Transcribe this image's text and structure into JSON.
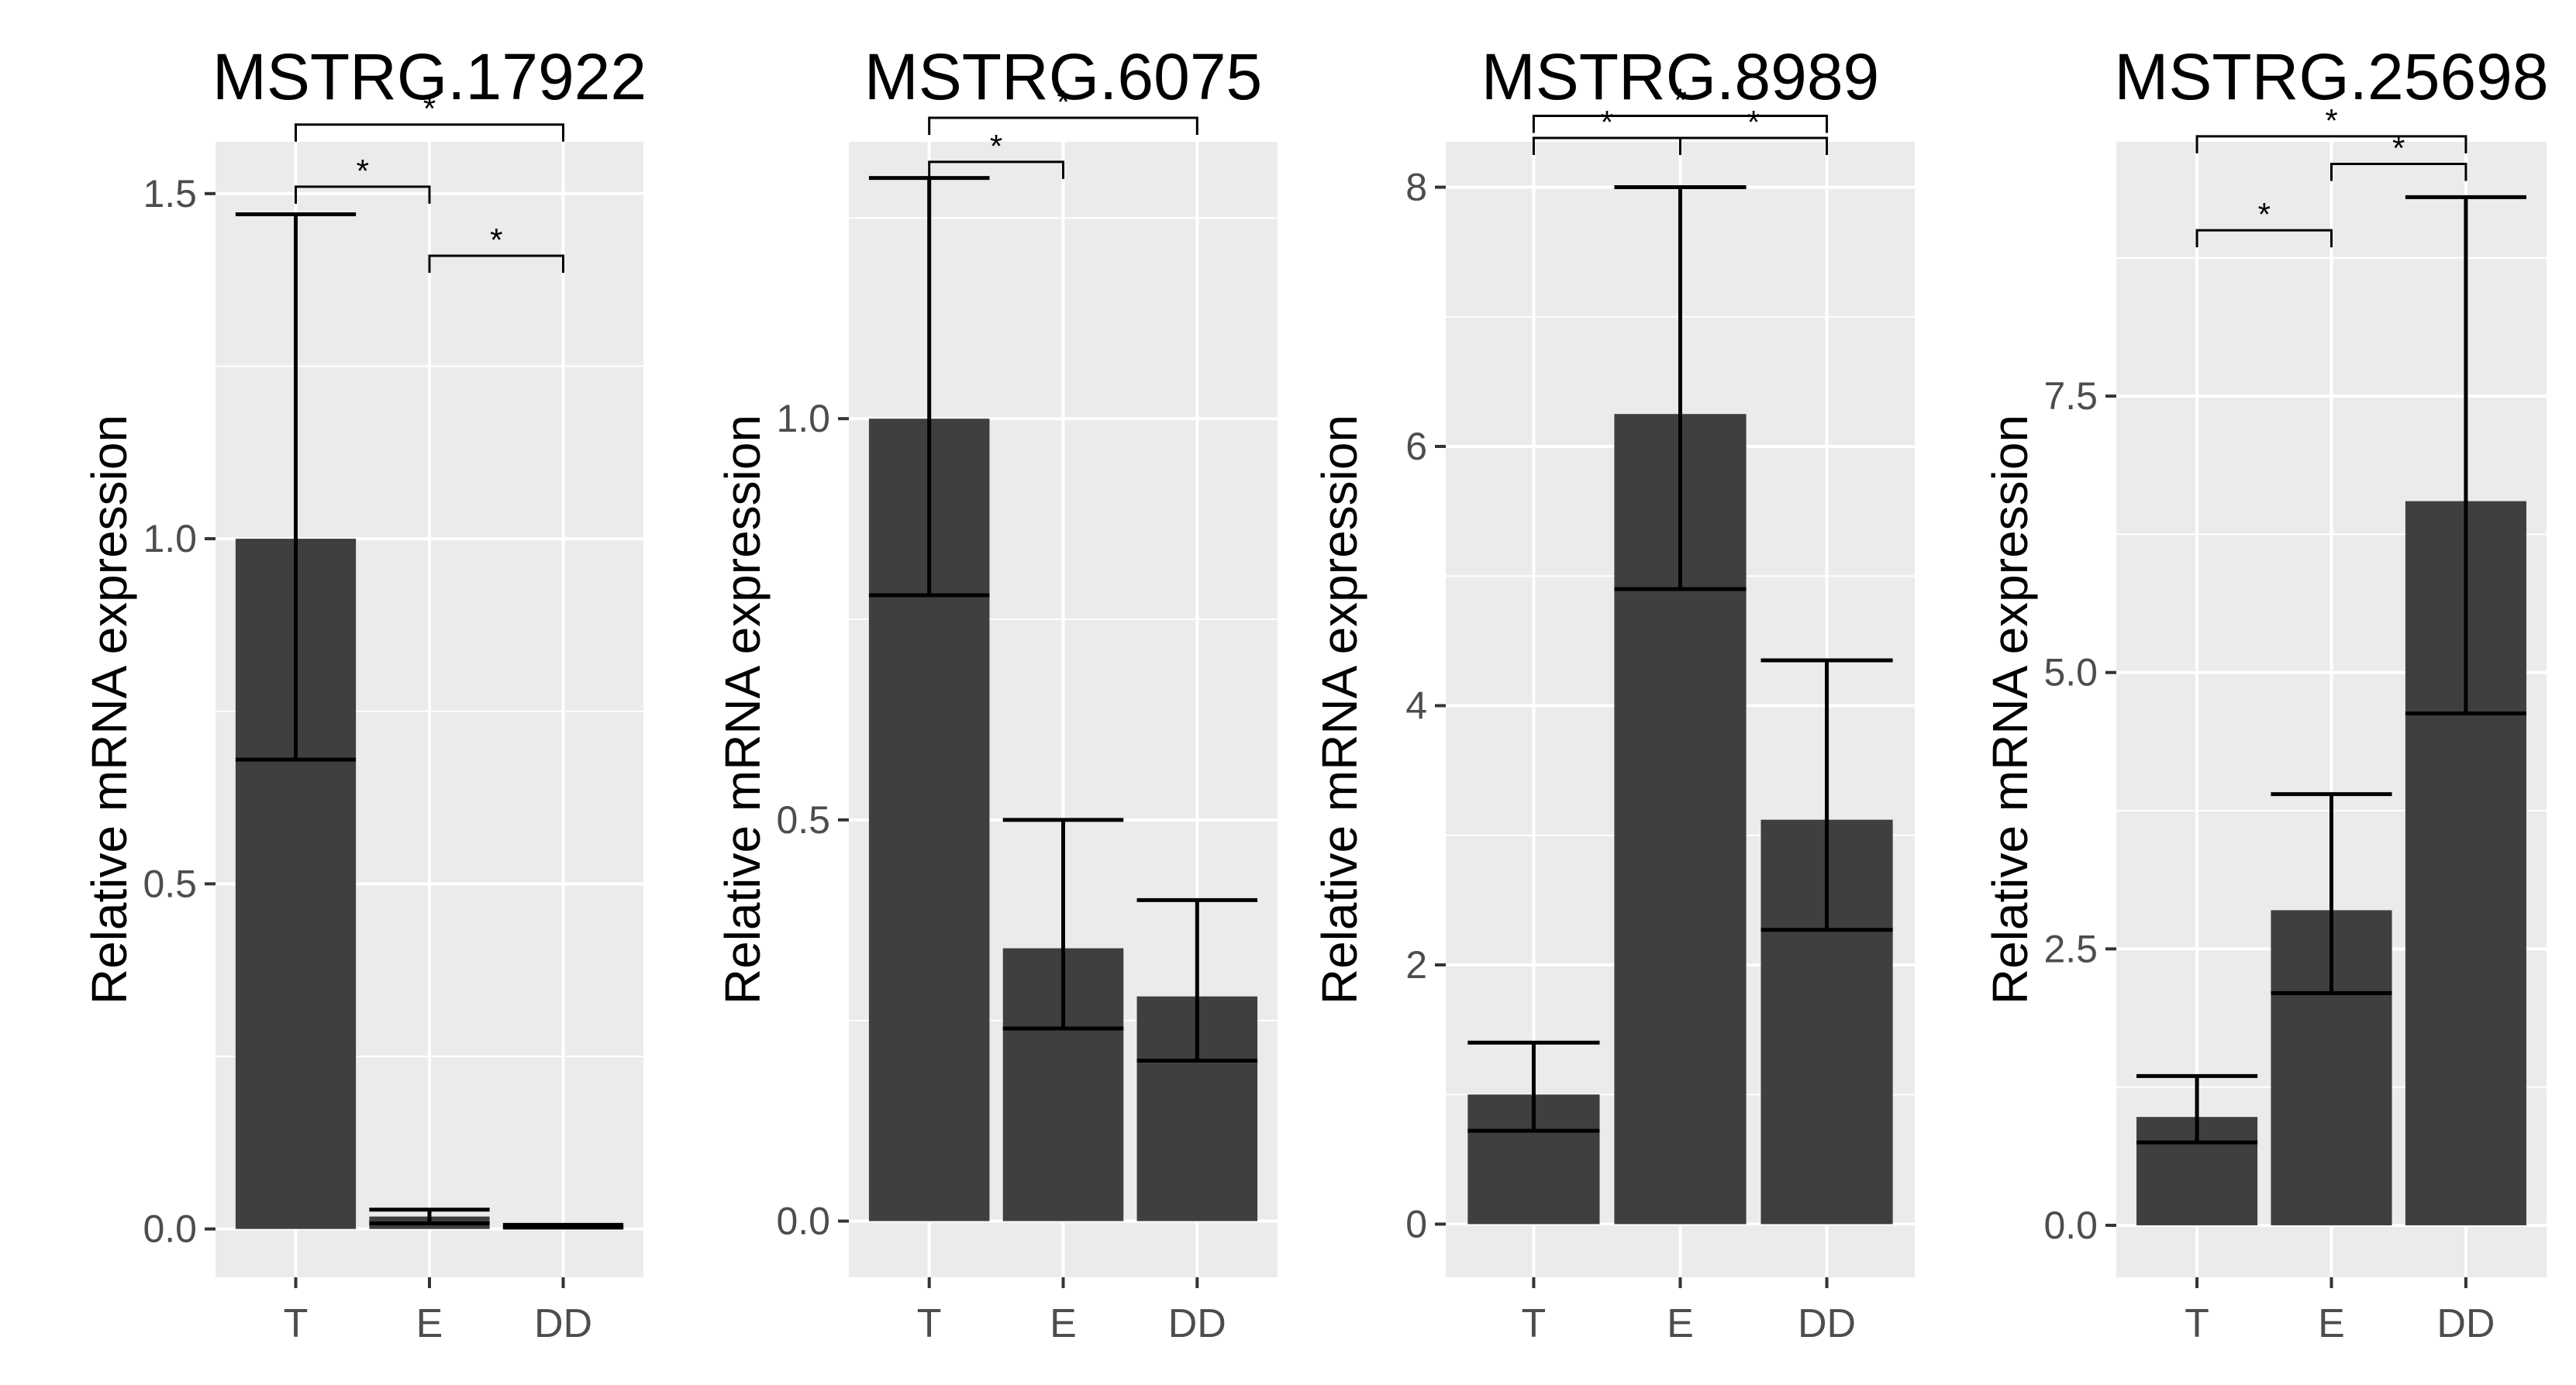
{
  "chart_data": [
    {
      "type": "bar",
      "title": "MSTRG.17922",
      "ylabel": "Relative mRNA expression",
      "categories": [
        "T",
        "E",
        "DD"
      ],
      "values": [
        1.0,
        0.018,
        0.004
      ],
      "error_low": [
        0.68,
        0.008,
        0.002
      ],
      "error_high": [
        1.47,
        0.028,
        0.006
      ],
      "ylim": [
        -0.07,
        1.575
      ],
      "yticks": [
        0,
        0.5,
        1,
        1.5
      ],
      "ytick_labels": [
        "0.0",
        "0.5",
        "1.0",
        "1.5"
      ],
      "significance": [
        {
          "from": 0,
          "to": 2,
          "label": "*",
          "level": 1.6
        },
        {
          "from": 0,
          "to": 1,
          "label": "*",
          "level": 1.51
        },
        {
          "from": 1,
          "to": 2,
          "label": "*",
          "level": 1.41
        }
      ]
    },
    {
      "type": "bar",
      "title": "MSTRG.6075",
      "ylabel": "Relative mRNA expression",
      "categories": [
        "T",
        "E",
        "DD"
      ],
      "values": [
        1.0,
        0.34,
        0.28
      ],
      "error_low": [
        0.78,
        0.24,
        0.2
      ],
      "error_high": [
        1.3,
        0.5,
        0.4
      ],
      "ylim": [
        -0.07,
        1.345
      ],
      "yticks": [
        0,
        0.5,
        1
      ],
      "ytick_labels": [
        "0.0",
        "0.5",
        "1.0"
      ],
      "significance": [
        {
          "from": 0,
          "to": 2,
          "label": "*",
          "level": 1.375
        },
        {
          "from": 0,
          "to": 1,
          "label": "*",
          "level": 1.32
        }
      ]
    },
    {
      "type": "bar",
      "title": "MSTRG.8989",
      "ylabel": "Relative mRNA expression",
      "categories": [
        "T",
        "E",
        "DD"
      ],
      "values": [
        1.0,
        6.25,
        3.12
      ],
      "error_low": [
        0.72,
        4.9,
        2.27
      ],
      "error_high": [
        1.4,
        8.0,
        4.35
      ],
      "ylim": [
        -0.41,
        8.35
      ],
      "yticks": [
        0,
        2,
        4,
        6,
        8
      ],
      "ytick_labels": [
        "0",
        "2",
        "4",
        "6",
        "8"
      ],
      "significance": [
        {
          "from": 0,
          "to": 2,
          "label": "*",
          "level": 8.55
        },
        {
          "from": 0,
          "to": 1,
          "label": "*",
          "level": 8.38
        },
        {
          "from": 1,
          "to": 2,
          "label": "*",
          "level": 8.38
        }
      ]
    },
    {
      "type": "bar",
      "title": "MSTRG.25698",
      "ylabel": "Relative mRNA expression",
      "categories": [
        "T",
        "E",
        "DD"
      ],
      "values": [
        0.98,
        2.85,
        6.55
      ],
      "error_low": [
        0.75,
        2.1,
        4.63
      ],
      "error_high": [
        1.35,
        3.9,
        9.3
      ],
      "ylim": [
        -0.47,
        9.8
      ],
      "yticks": [
        0,
        2.5,
        5,
        7.5
      ],
      "ytick_labels": [
        "0.0",
        "2.5",
        "5.0",
        "7.5"
      ],
      "significance": [
        {
          "from": 0,
          "to": 2,
          "label": "*",
          "level": 9.85
        },
        {
          "from": 1,
          "to": 2,
          "label": "*",
          "level": 9.6
        },
        {
          "from": 0,
          "to": 1,
          "label": "*",
          "level": 9.0
        }
      ]
    }
  ],
  "colors": {
    "panel_bg": "#ebebeb",
    "grid": "#ffffff",
    "bar": "#3f3f3f",
    "errorbar": "#000000",
    "tick_text": "#4d4d4d"
  }
}
